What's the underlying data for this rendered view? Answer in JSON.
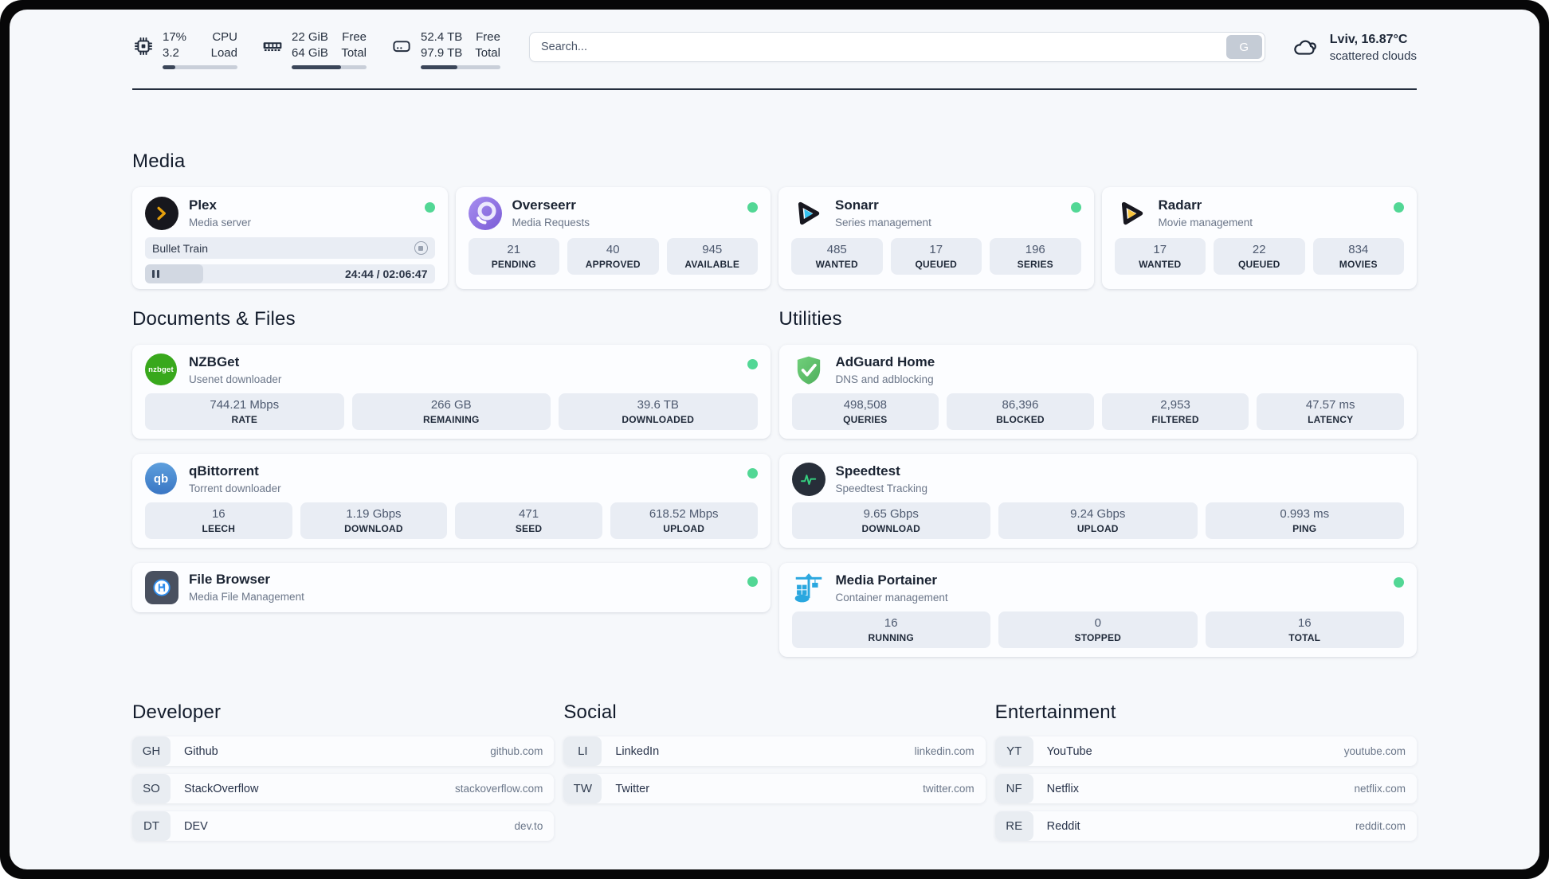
{
  "topbar": {
    "metrics": [
      {
        "icon": "cpu-icon",
        "value_top": "17%",
        "value_bottom": "3.2",
        "label_top": "CPU",
        "label_bottom": "Load",
        "percent": 17
      },
      {
        "icon": "ram-icon",
        "value_top": "22 GiB",
        "value_bottom": "64 GiB",
        "label_top": "Free",
        "label_bottom": "Total",
        "percent": 66
      },
      {
        "icon": "disk-icon",
        "value_top": "52.4 TB",
        "value_bottom": "97.9 TB",
        "label_top": "Free",
        "label_bottom": "Total",
        "percent": 46
      }
    ],
    "search": {
      "placeholder": "Search...",
      "button_label": "G"
    },
    "weather": {
      "icon": "cloud-icon",
      "title": "Lviv, 16.87°C",
      "subtitle": "scattered clouds"
    }
  },
  "colors": {
    "status_online": "#52d795"
  },
  "sections": {
    "media": {
      "title": "Media",
      "services": [
        {
          "id": "plex",
          "icon": "plex-icon",
          "name": "Plex",
          "desc": "Media server",
          "online": true,
          "player": {
            "title": "Bullet Train",
            "time": "24:44 / 02:06:47",
            "progress_percent": 20
          }
        },
        {
          "id": "overseerr",
          "icon": "overseerr-icon",
          "name": "Overseerr",
          "desc": "Media Requests",
          "online": true,
          "stats": [
            {
              "value": "21",
              "label": "PENDING"
            },
            {
              "value": "40",
              "label": "APPROVED"
            },
            {
              "value": "945",
              "label": "AVAILABLE"
            }
          ]
        },
        {
          "id": "sonarr",
          "icon": "sonarr-icon",
          "name": "Sonarr",
          "desc": "Series management",
          "online": true,
          "stats": [
            {
              "value": "485",
              "label": "WANTED"
            },
            {
              "value": "17",
              "label": "QUEUED"
            },
            {
              "value": "196",
              "label": "SERIES"
            }
          ]
        },
        {
          "id": "radarr",
          "icon": "radarr-icon",
          "name": "Radarr",
          "desc": "Movie management",
          "online": true,
          "stats": [
            {
              "value": "17",
              "label": "WANTED"
            },
            {
              "value": "22",
              "label": "QUEUED"
            },
            {
              "value": "834",
              "label": "MOVIES"
            }
          ]
        }
      ]
    },
    "documents": {
      "title": "Documents & Files",
      "services": [
        {
          "id": "nzbget",
          "icon": "nzbget-icon",
          "name": "NZBGet",
          "desc": "Usenet downloader",
          "online": true,
          "stats": [
            {
              "value": "744.21 Mbps",
              "label": "RATE"
            },
            {
              "value": "266 GB",
              "label": "REMAINING"
            },
            {
              "value": "39.6 TB",
              "label": "DOWNLOADED"
            }
          ]
        },
        {
          "id": "qbittorrent",
          "icon": "qbittorrent-icon",
          "name": "qBittorrent",
          "desc": "Torrent downloader",
          "online": true,
          "stats": [
            {
              "value": "16",
              "label": "LEECH"
            },
            {
              "value": "1.19 Gbps",
              "label": "DOWNLOAD"
            },
            {
              "value": "471",
              "label": "SEED"
            },
            {
              "value": "618.52 Mbps",
              "label": "UPLOAD"
            }
          ]
        },
        {
          "id": "filebrowser",
          "icon": "filebrowser-icon",
          "name": "File Browser",
          "desc": "Media File Management",
          "online": true,
          "slim": true
        }
      ]
    },
    "utilities": {
      "title": "Utilities",
      "services": [
        {
          "id": "adguard",
          "icon": "adguard-icon",
          "name": "AdGuard Home",
          "desc": "DNS and adblocking",
          "online": false,
          "stats": [
            {
              "value": "498,508",
              "label": "QUERIES"
            },
            {
              "value": "86,396",
              "label": "BLOCKED"
            },
            {
              "value": "2,953",
              "label": "FILTERED"
            },
            {
              "value": "47.57 ms",
              "label": "LATENCY"
            }
          ]
        },
        {
          "id": "speedtest",
          "icon": "speedtest-icon",
          "name": "Speedtest",
          "desc": "Speedtest Tracking",
          "online": false,
          "stats": [
            {
              "value": "9.65 Gbps",
              "label": "DOWNLOAD"
            },
            {
              "value": "9.24 Gbps",
              "label": "UPLOAD"
            },
            {
              "value": "0.993 ms",
              "label": "PING"
            }
          ]
        },
        {
          "id": "portainer",
          "icon": "portainer-icon",
          "name": "Media Portainer",
          "desc": "Container management",
          "online": true,
          "stats": [
            {
              "value": "16",
              "label": "RUNNING"
            },
            {
              "value": "0",
              "label": "STOPPED"
            },
            {
              "value": "16",
              "label": "TOTAL"
            }
          ]
        }
      ]
    }
  },
  "bookmarks": {
    "groups": [
      {
        "id": "developer",
        "title": "Developer",
        "items": [
          {
            "badge": "GH",
            "name": "Github",
            "url": "github.com"
          },
          {
            "badge": "SO",
            "name": "StackOverflow",
            "url": "stackoverflow.com"
          },
          {
            "badge": "DT",
            "name": "DEV",
            "url": "dev.to"
          }
        ]
      },
      {
        "id": "social",
        "title": "Social",
        "items": [
          {
            "badge": "LI",
            "name": "LinkedIn",
            "url": "linkedin.com"
          },
          {
            "badge": "TW",
            "name": "Twitter",
            "url": "twitter.com"
          }
        ]
      },
      {
        "id": "entertainment",
        "title": "Entertainment",
        "items": [
          {
            "badge": "YT",
            "name": "YouTube",
            "url": "youtube.com"
          },
          {
            "badge": "NF",
            "name": "Netflix",
            "url": "netflix.com"
          },
          {
            "badge": "RE",
            "name": "Reddit",
            "url": "reddit.com"
          }
        ]
      }
    ]
  }
}
